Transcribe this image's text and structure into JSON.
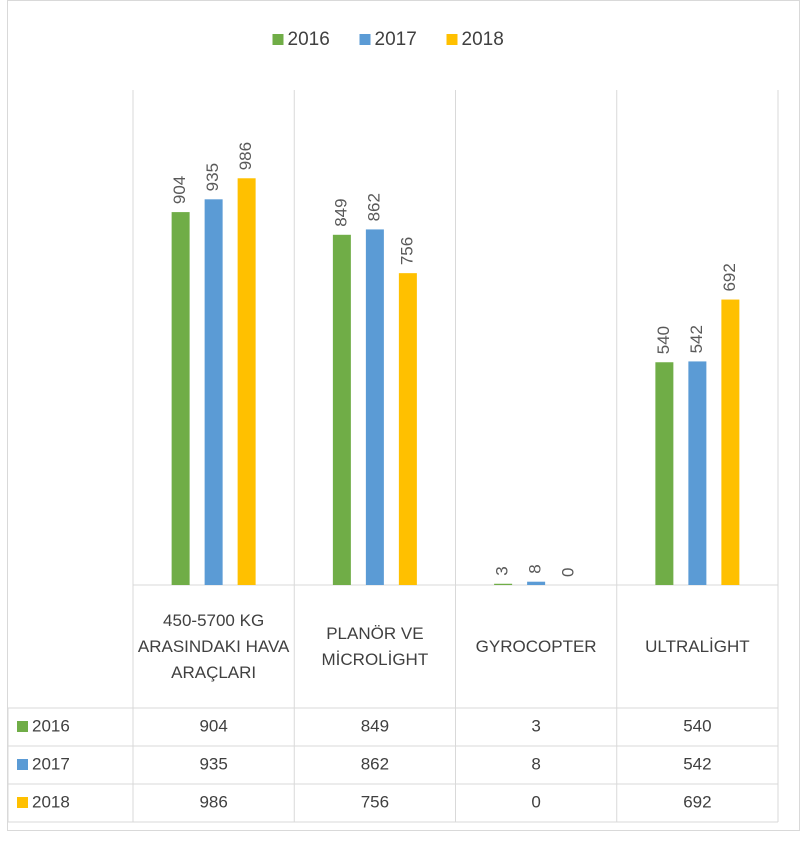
{
  "chart_data": {
    "type": "bar",
    "categories": [
      "450-5700 KG ARASINDAKI HAVA ARAÇLARI",
      "PLANÖR VE MİCROLİGHT",
      "GYROCOPTER",
      "ULTRALİGHT"
    ],
    "series": [
      {
        "name": "2016",
        "color": "#70ad47",
        "values": [
          904,
          849,
          3,
          540
        ]
      },
      {
        "name": "2017",
        "color": "#5b9bd5",
        "values": [
          935,
          862,
          8,
          542
        ]
      },
      {
        "name": "2018",
        "color": "#ffc000",
        "values": [
          986,
          756,
          0,
          692
        ]
      }
    ],
    "ylim": [
      0,
      1200
    ],
    "legend": "top",
    "data_table": true
  }
}
